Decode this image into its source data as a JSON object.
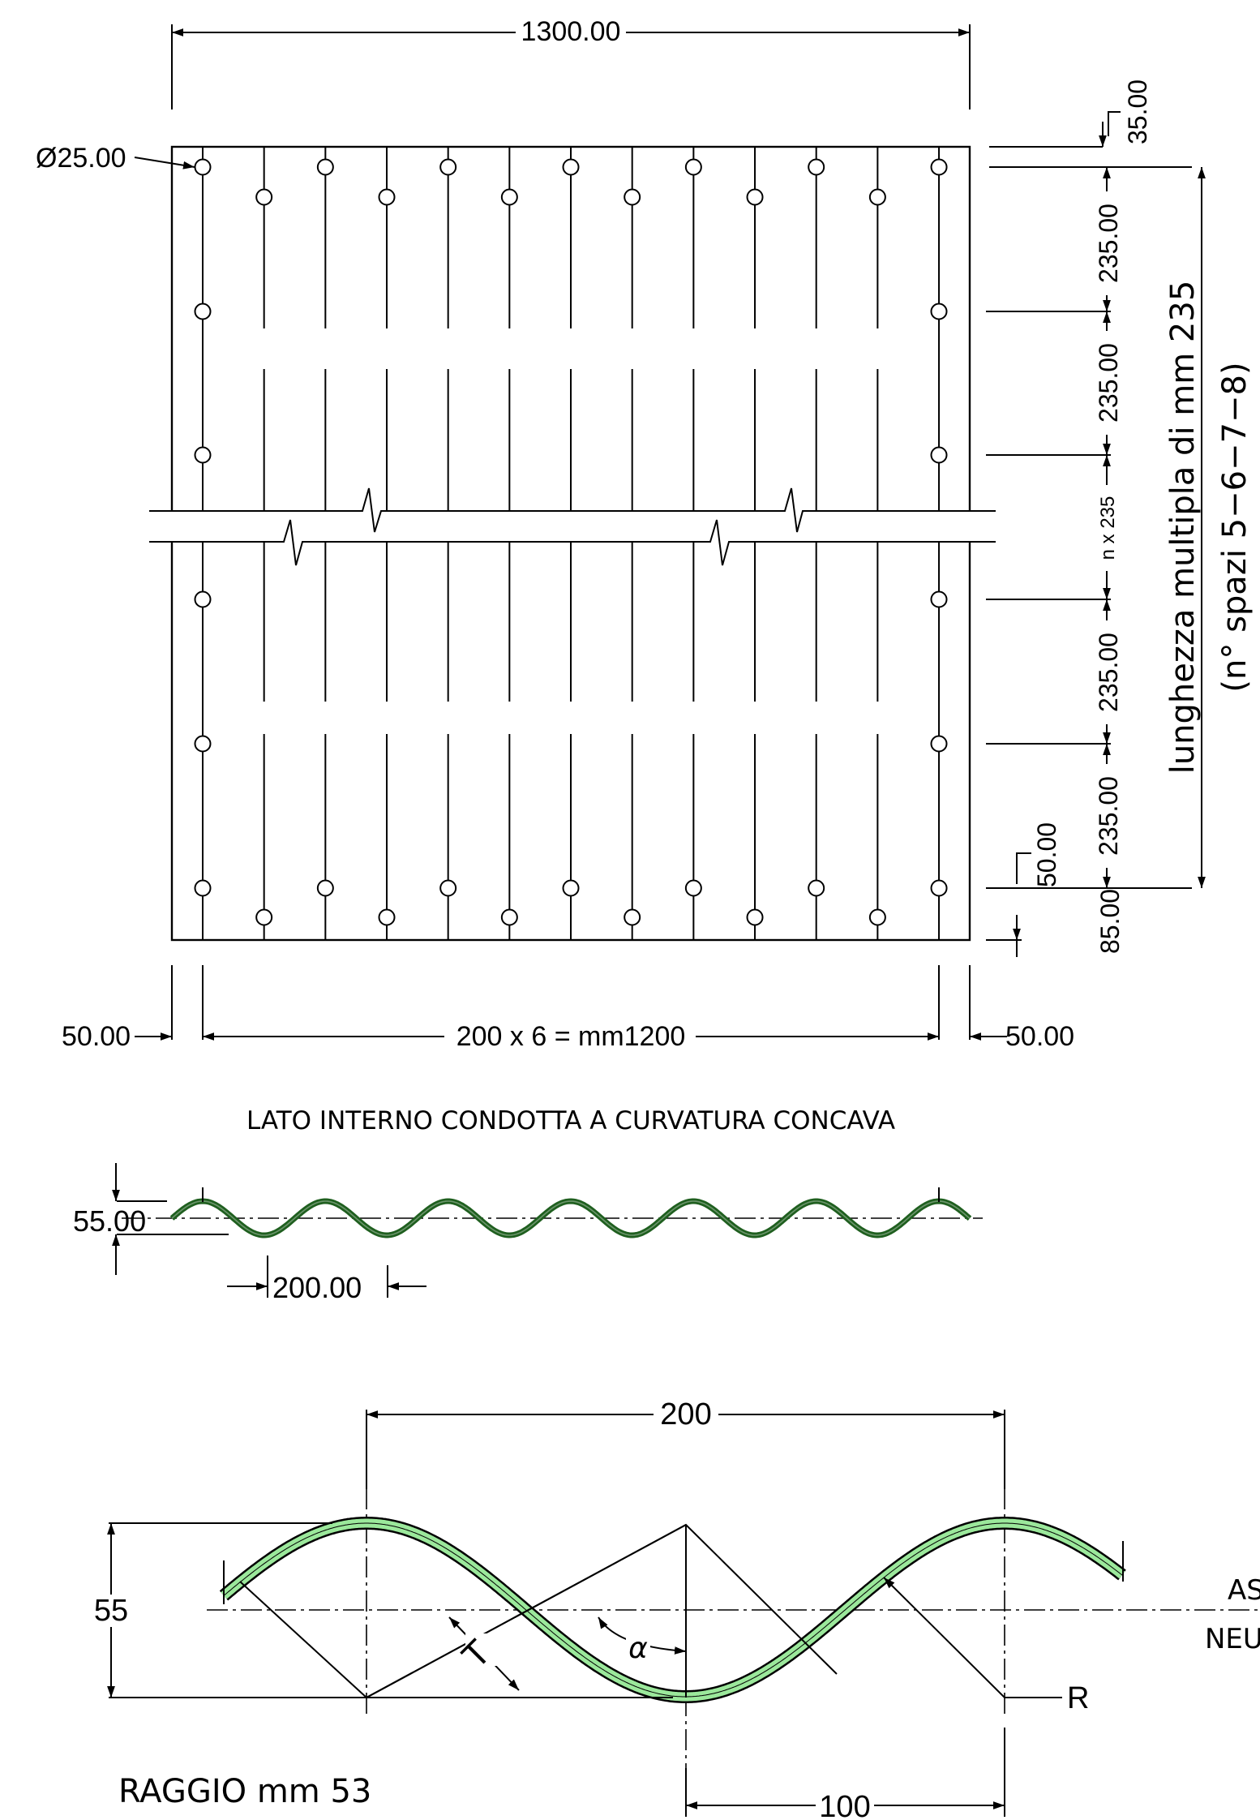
{
  "plate": {
    "dim_width": "1300.00",
    "hole_diameter": "Ø25.00",
    "dim_top_offset": "35.00",
    "dim_rows": [
      "235.00",
      "235.00",
      "n x 235",
      "235.00",
      "235.00"
    ],
    "dim_bottom_a": "50.00",
    "dim_bottom_b": "85.00",
    "length_label_line1": "lunghezza  multipla  di  mm  235",
    "length_label_line2": "(n°  spazi  5−6−7−8)",
    "dim_left_margin": "50.00",
    "dim_pitch_total": "200 x 6 = mm1200",
    "dim_right_margin": "50.00"
  },
  "section_title": "LATO  INTERNO  CONDOTTA  A  CURVATURA  CONCAVA",
  "profile": {
    "dim_height": "55.00",
    "dim_pitch": "200.00",
    "stroke_color": "#1f5f1f"
  },
  "detail": {
    "dim_pitch": "200",
    "dim_height": "55",
    "dim_half_pitch": "100",
    "label_thickness": "T",
    "label_angle": "α",
    "label_radius": "R",
    "axis_line1": "AS",
    "axis_line2": "NEU",
    "radius_note": "RAGGIO  mm  53",
    "fill_color": "#9be89b"
  }
}
